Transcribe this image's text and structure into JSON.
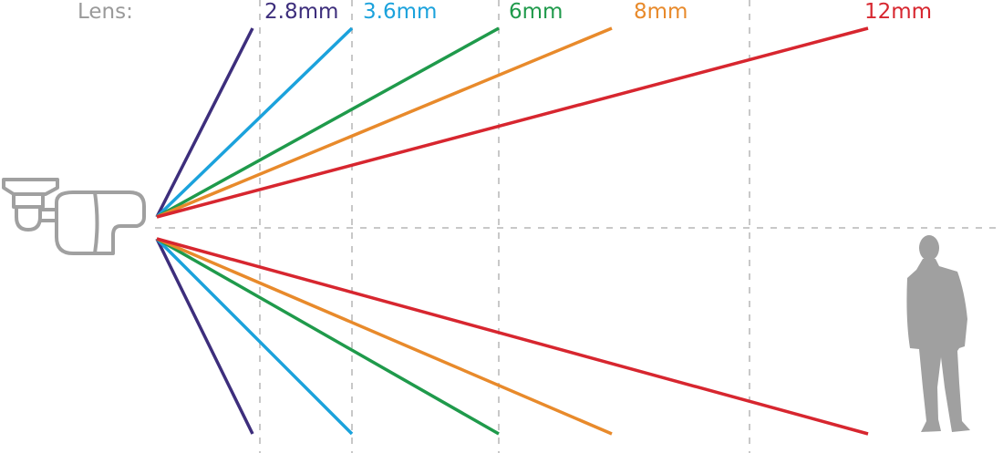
{
  "header": {
    "label": "Lens:",
    "label_color": "#9a9a9a"
  },
  "lenses": [
    {
      "name": "2.8mm",
      "color": "#3d2e7c"
    },
    {
      "name": "3.6mm",
      "color": "#1ba2dc"
    },
    {
      "name": "6mm",
      "color": "#1f9a4b"
    },
    {
      "name": "8mm",
      "color": "#e88a2b"
    },
    {
      "name": "12mm",
      "color": "#d7262f"
    }
  ],
  "icons": {
    "camera": "bullet-camera-icon",
    "person": "person-silhouette-icon"
  },
  "grid_color": "#c8c8c8",
  "icon_color": "#a0a0a0"
}
